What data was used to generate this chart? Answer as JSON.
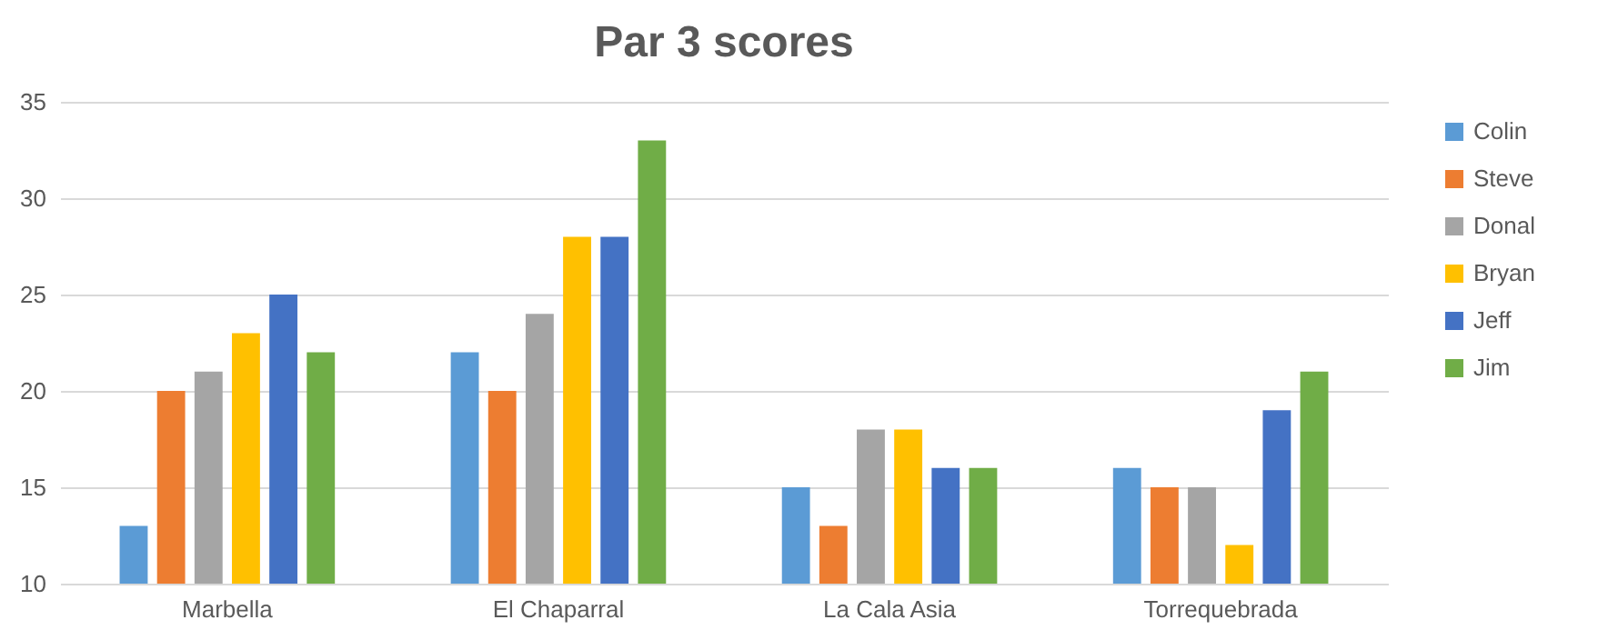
{
  "chart_data": {
    "type": "bar",
    "title": "Par 3 scores",
    "categories": [
      "Marbella",
      "El Chaparral",
      "La Cala Asia",
      "Torrequebrada"
    ],
    "series": [
      {
        "name": "Colin",
        "color": "#5b9bd5",
        "values": [
          13,
          22,
          15,
          16
        ]
      },
      {
        "name": "Steve",
        "color": "#ed7d31",
        "values": [
          20,
          20,
          13,
          15
        ]
      },
      {
        "name": "Donal",
        "color": "#a5a5a5",
        "values": [
          21,
          24,
          18,
          15
        ]
      },
      {
        "name": "Bryan",
        "color": "#ffc000",
        "values": [
          23,
          28,
          18,
          12
        ]
      },
      {
        "name": "Jeff",
        "color": "#4472c4",
        "values": [
          25,
          28,
          16,
          19
        ]
      },
      {
        "name": "Jim",
        "color": "#70ad47",
        "values": [
          22,
          33,
          16,
          21
        ]
      }
    ],
    "ylim": [
      10,
      35
    ],
    "yticks": [
      10,
      15,
      20,
      25,
      30,
      35
    ],
    "grid": "y",
    "legend": "right"
  }
}
